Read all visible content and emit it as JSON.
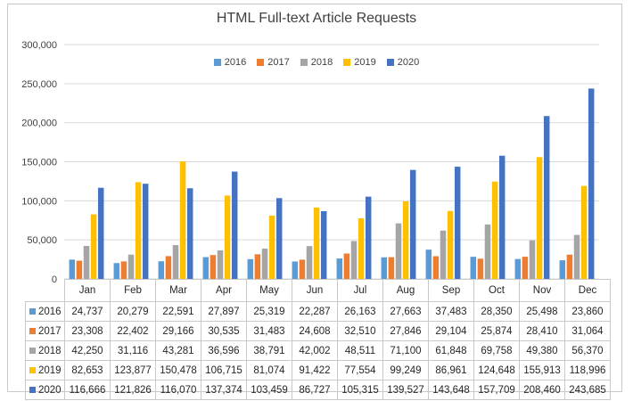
{
  "chart_data": {
    "type": "bar",
    "title": "HTML Full-text Article Requests",
    "xlabel": "",
    "ylabel": "",
    "ylim": [
      0,
      300000
    ],
    "yticks": [
      0,
      50000,
      100000,
      150000,
      200000,
      250000,
      300000
    ],
    "ytick_labels": [
      "0",
      "50,000",
      "100,000",
      "150,000",
      "200,000",
      "250,000",
      "300,000"
    ],
    "legend_position": "top-center",
    "categories": [
      "Jan",
      "Feb",
      "Mar",
      "Apr",
      "May",
      "Jun",
      "Jul",
      "Aug",
      "Sep",
      "Oct",
      "Nov",
      "Dec"
    ],
    "series": [
      {
        "name": "2016",
        "color": "#5b9bd5",
        "values": [
          24737,
          20279,
          22591,
          27897,
          25319,
          22287,
          26163,
          27663,
          37483,
          28350,
          25498,
          23860
        ],
        "labels": [
          "24,737",
          "20,279",
          "22,591",
          "27,897",
          "25,319",
          "22,287",
          "26,163",
          "27,663",
          "37,483",
          "28,350",
          "25,498",
          "23,860"
        ]
      },
      {
        "name": "2017",
        "color": "#ed7d31",
        "values": [
          23308,
          22402,
          29166,
          30535,
          31483,
          24608,
          32510,
          27846,
          29104,
          25874,
          28410,
          31064
        ],
        "labels": [
          "23,308",
          "22,402",
          "29,166",
          "30,535",
          "31,483",
          "24,608",
          "32,510",
          "27,846",
          "29,104",
          "25,874",
          "28,410",
          "31,064"
        ]
      },
      {
        "name": "2018",
        "color": "#a5a5a5",
        "values": [
          42250,
          31116,
          43281,
          36596,
          38791,
          42002,
          48511,
          71100,
          61848,
          69758,
          49380,
          56370
        ],
        "labels": [
          "42,250",
          "31,116",
          "43,281",
          "36,596",
          "38,791",
          "42,002",
          "48,511",
          "71,100",
          "61,848",
          "69,758",
          "49,380",
          "56,370"
        ]
      },
      {
        "name": "2019",
        "color": "#ffc000",
        "values": [
          82653,
          123877,
          150478,
          106715,
          81074,
          91422,
          77554,
          99249,
          86961,
          124648,
          155913,
          118996
        ],
        "labels": [
          "82,653",
          "123,877",
          "150,478",
          "106,715",
          "81,074",
          "91,422",
          "77,554",
          "99,249",
          "86,961",
          "124,648",
          "155,913",
          "118,996"
        ]
      },
      {
        "name": "2020",
        "color": "#4472c4",
        "values": [
          116666,
          121826,
          116070,
          137374,
          103459,
          86727,
          105315,
          139527,
          143648,
          157709,
          208460,
          243685
        ],
        "labels": [
          "116,666",
          "121,826",
          "116,070",
          "137,374",
          "103,459",
          "86,727",
          "105,315",
          "139,527",
          "143,648",
          "157,709",
          "208,460",
          "243,685"
        ]
      }
    ]
  }
}
